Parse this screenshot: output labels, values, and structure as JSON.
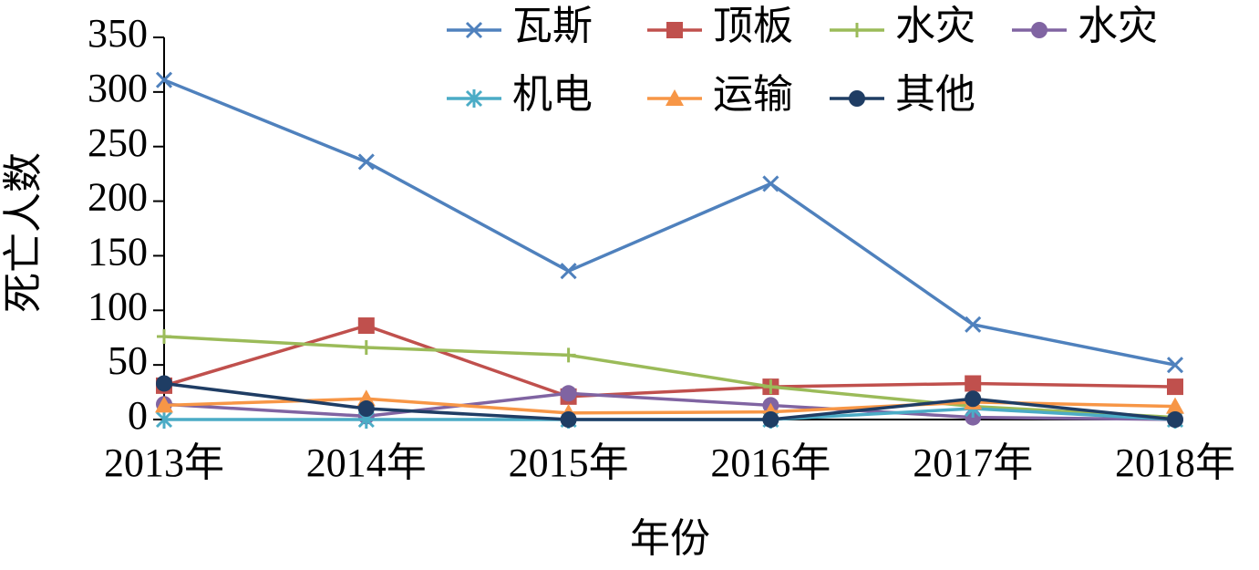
{
  "chart_data": {
    "type": "line",
    "x_label": "年份",
    "y_label": "死亡人数",
    "categories": [
      "2013年",
      "2014年",
      "2015年",
      "2016年",
      "2017年",
      "2018年"
    ],
    "ylim": [
      0,
      350
    ],
    "yticks": [
      0,
      50,
      100,
      150,
      200,
      250,
      300,
      350
    ],
    "series": [
      {
        "name": "瓦斯",
        "color": "#4f81bd",
        "marker": "x",
        "values": [
          311,
          236,
          136,
          216,
          87,
          50
        ]
      },
      {
        "name": "顶板",
        "color": "#c0504d",
        "marker": "square",
        "values": [
          31,
          86,
          21,
          30,
          33,
          30
        ]
      },
      {
        "name": "水灾",
        "color": "#9bbb59",
        "marker": "plus",
        "values": [
          76,
          66,
          59,
          30,
          12,
          2
        ]
      },
      {
        "name": "水灾",
        "color": "#8064a2",
        "marker": "circle",
        "values": [
          14,
          3,
          24,
          13,
          2,
          0
        ]
      },
      {
        "name": "机电",
        "color": "#4bacc6",
        "marker": "asterisk",
        "values": [
          0,
          0,
          0,
          0,
          10,
          0
        ]
      },
      {
        "name": "运输",
        "color": "#f79646",
        "marker": "triangle",
        "values": [
          13,
          19,
          6,
          7,
          16,
          12
        ]
      },
      {
        "name": "其他",
        "color": "#1f3d64",
        "marker": "dot",
        "values": [
          33,
          10,
          0,
          0,
          19,
          0
        ]
      }
    ]
  }
}
